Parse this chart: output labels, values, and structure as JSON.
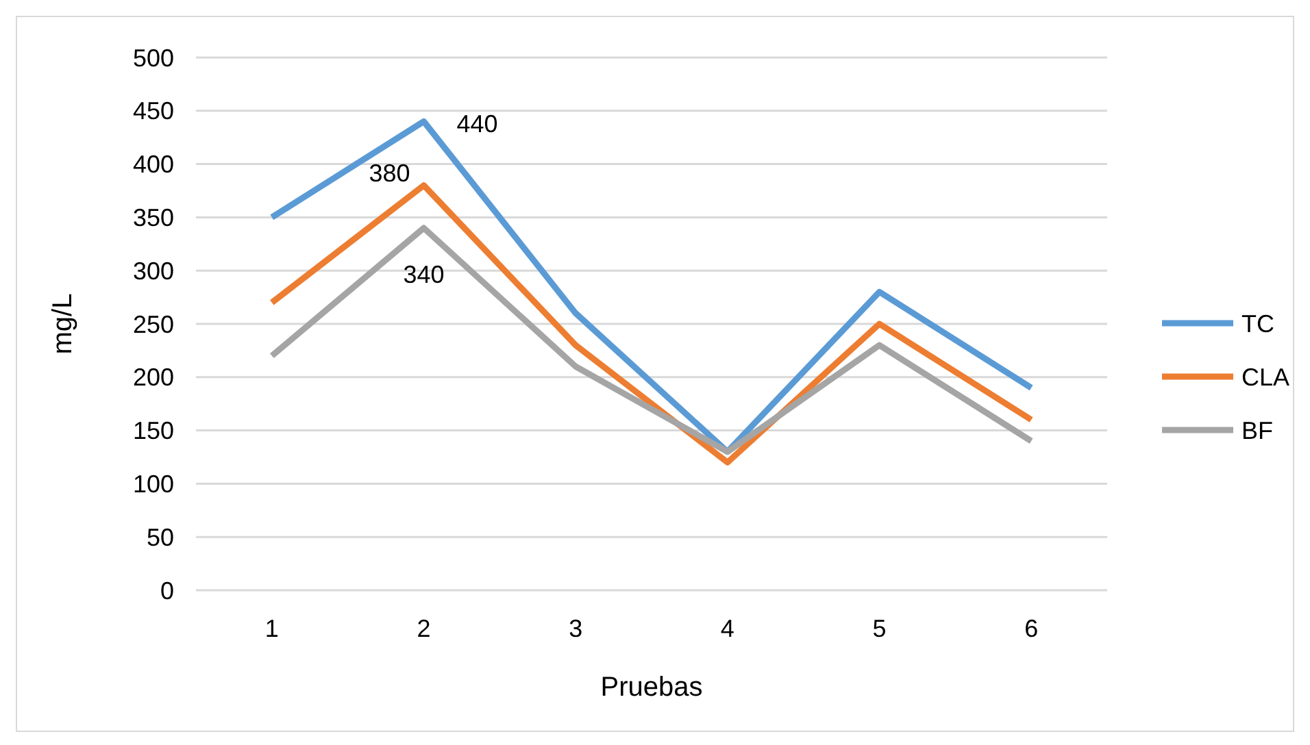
{
  "chart_data": {
    "type": "line",
    "xlabel": "Pruebas",
    "ylabel": "mg/L",
    "categories": [
      "1",
      "2",
      "3",
      "4",
      "5",
      "6"
    ],
    "series": [
      {
        "name": "TC",
        "color": "#5b9bd5",
        "values": [
          350,
          440,
          260,
          130,
          280,
          190
        ],
        "value_labels": [
          null,
          "440",
          null,
          null,
          null,
          null
        ]
      },
      {
        "name": "CLA",
        "color": "#ed7d31",
        "values": [
          270,
          380,
          230,
          120,
          250,
          160
        ],
        "value_labels": [
          null,
          "380",
          null,
          null,
          null,
          null
        ]
      },
      {
        "name": "BF",
        "color": "#a5a5a5",
        "values": [
          220,
          340,
          210,
          130,
          230,
          140
        ],
        "value_labels": [
          null,
          "340",
          null,
          null,
          null,
          null
        ]
      }
    ],
    "ylim": [
      0,
      500
    ],
    "yticks": [
      0,
      50,
      100,
      150,
      200,
      250,
      300,
      350,
      400,
      450,
      500
    ],
    "grid": "y",
    "legend": "right",
    "marker": "none",
    "line_style": "solid"
  }
}
